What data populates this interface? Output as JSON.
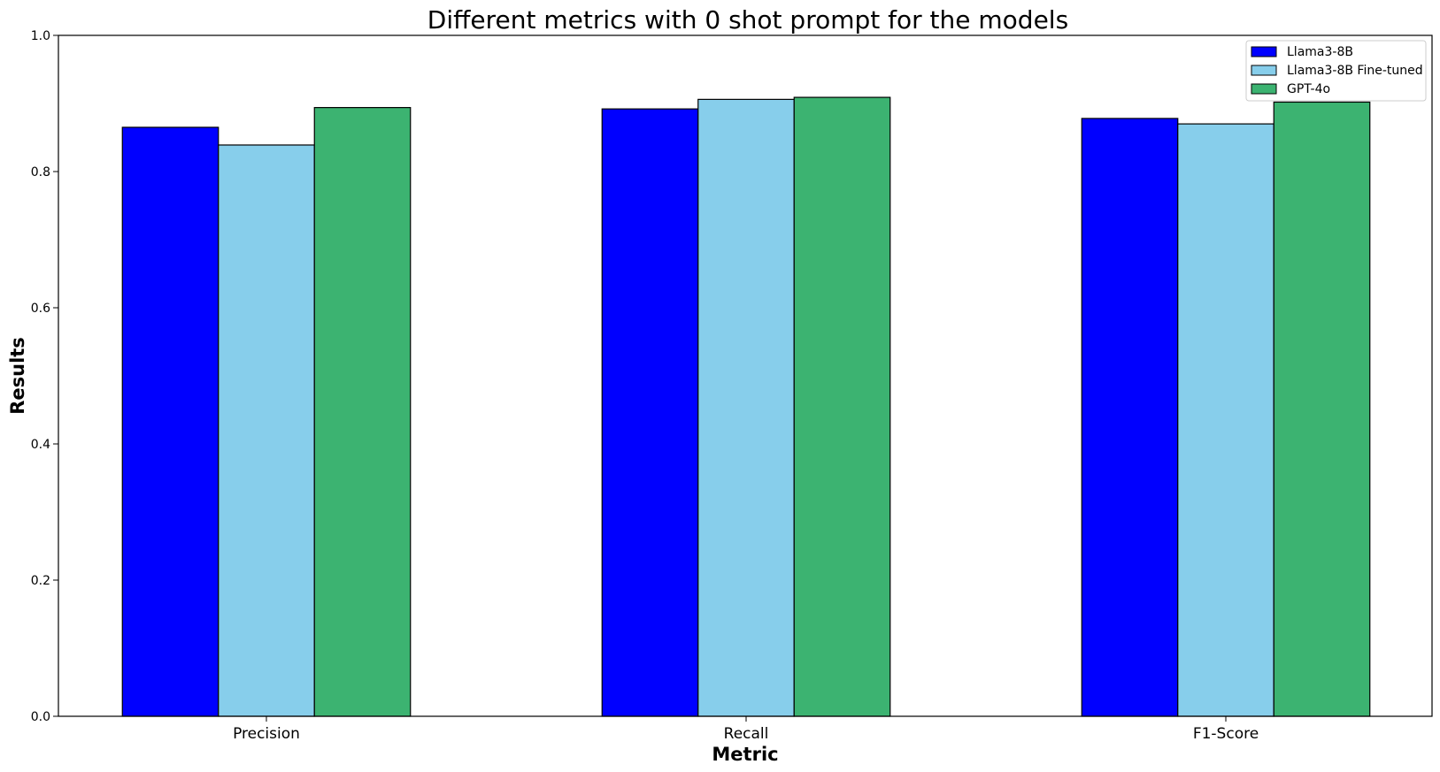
{
  "chart_data": {
    "type": "bar",
    "title": "Different metrics with 0 shot prompt for the models",
    "xlabel": "Metric",
    "ylabel": "Results",
    "categories": [
      "Precision",
      "Recall",
      "F1-Score"
    ],
    "ylim": [
      0.0,
      1.0
    ],
    "yticks": [
      "0.0",
      "0.2",
      "0.4",
      "0.6",
      "0.8",
      "1.0"
    ],
    "grid": false,
    "legend_position": "top-right",
    "series": [
      {
        "name": "Llama3-8B",
        "color": "#0000ff",
        "values": [
          0.865,
          0.892,
          0.878
        ]
      },
      {
        "name": "Llama3-8B Fine-tuned",
        "color": "#87ceeb",
        "values": [
          0.839,
          0.906,
          0.87
        ]
      },
      {
        "name": "GPT-4o",
        "color": "#3cb371",
        "values": [
          0.894,
          0.909,
          0.902
        ]
      }
    ]
  }
}
